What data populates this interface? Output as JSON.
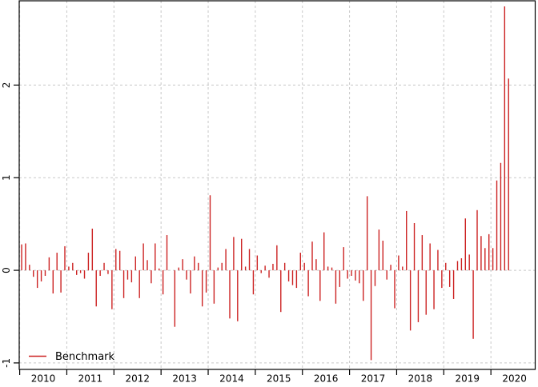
{
  "figure": {
    "title": "",
    "background": "#ffffff"
  },
  "colors": {
    "bar": "#cc2222",
    "grid": "#c8c8c8",
    "frame": "#000000",
    "text": "#000000"
  },
  "legend": {
    "label": "Benchmark",
    "position": "bottom-left"
  },
  "chart_data": {
    "type": "bar",
    "subtype": "monthly-spike-plot (R type='h')",
    "title": "",
    "xlabel": "",
    "ylabel": "",
    "frequency": "monthly",
    "start_month": "2010-01",
    "end_month": "2020-05",
    "xlim": [
      2009.99,
      2020.94
    ],
    "ylim": [
      -1.07,
      2.91
    ],
    "x_tick_years": [
      "2010",
      "2011",
      "2012",
      "2013",
      "2014",
      "2015",
      "2016",
      "2017",
      "2018",
      "2019",
      "2020"
    ],
    "y_ticks": [
      -1,
      0,
      1,
      2
    ],
    "grid": "dashed gray, vertical at year boundaries, horizontal at y ticks",
    "legend_position": "bottom-left inside plot",
    "series": [
      {
        "name": "Benchmark",
        "color": "#cc2222",
        "values": [
          0.28,
          0.29,
          0.06,
          -0.07,
          -0.19,
          -0.12,
          -0.06,
          0.14,
          -0.25,
          0.19,
          -0.24,
          0.26,
          0.04,
          0.08,
          -0.05,
          -0.03,
          -0.09,
          0.19,
          0.45,
          -0.39,
          -0.06,
          0.08,
          -0.04,
          -0.42,
          0.23,
          0.21,
          -0.3,
          -0.1,
          -0.13,
          0.15,
          -0.3,
          0.29,
          0.11,
          -0.14,
          0.29,
          0.02,
          -0.26,
          0.38,
          0.0,
          -0.61,
          0.03,
          0.12,
          -0.1,
          -0.25,
          0.15,
          0.08,
          -0.39,
          -0.24,
          0.81,
          -0.36,
          0.03,
          0.08,
          0.23,
          -0.52,
          0.36,
          -0.55,
          0.34,
          0.04,
          0.23,
          -0.26,
          0.16,
          -0.03,
          0.05,
          -0.08,
          0.07,
          0.27,
          -0.45,
          0.08,
          -0.12,
          -0.16,
          -0.19,
          0.19,
          0.08,
          -0.28,
          0.31,
          0.12,
          -0.33,
          0.41,
          0.04,
          0.03,
          -0.36,
          -0.18,
          0.25,
          -0.09,
          -0.06,
          -0.11,
          -0.14,
          -0.33,
          0.8,
          -0.97,
          -0.17,
          0.44,
          0.32,
          -0.1,
          0.06,
          -0.41,
          0.16,
          0.04,
          0.64,
          -0.65,
          0.51,
          -0.56,
          0.38,
          -0.48,
          0.29,
          -0.42,
          0.22,
          -0.19,
          0.08,
          -0.18,
          -0.31,
          0.1,
          0.13,
          0.56,
          0.17,
          -0.74,
          0.65,
          0.37,
          0.24,
          0.39,
          0.24,
          0.97,
          1.16,
          2.85,
          2.07
        ]
      }
    ]
  }
}
